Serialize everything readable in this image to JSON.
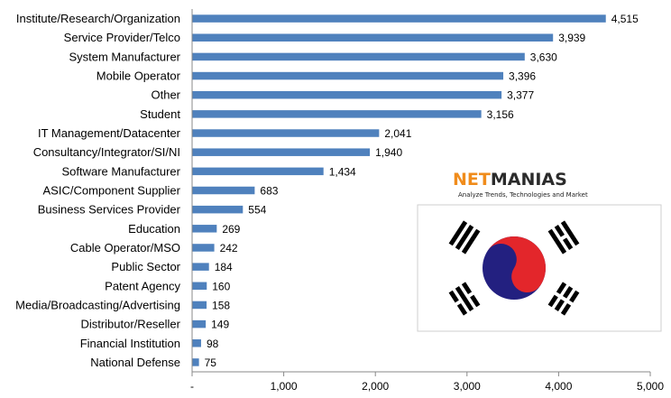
{
  "chart_data": {
    "type": "bar",
    "orientation": "horizontal",
    "categories": [
      "Institute/Research/Organization",
      "Service Provider/Telco",
      "System Manufacturer",
      "Mobile Operator",
      "Other",
      "Student",
      "IT Management/Datacenter",
      "Consultancy/Integrator/SI/NI",
      "Software Manufacturer",
      "ASIC/Component Supplier",
      "Business Services Provider",
      "Education",
      "Cable Operator/MSO",
      "Public Sector",
      "Patent Agency",
      "Media/Broadcasting/Advertising",
      "Distributor/Reseller",
      "Financial Institution",
      "National Defense"
    ],
    "values": [
      4515,
      3939,
      3630,
      3396,
      3377,
      3156,
      2041,
      1940,
      1434,
      683,
      554,
      269,
      242,
      184,
      160,
      158,
      149,
      98,
      75
    ],
    "value_labels": [
      "4,515",
      "3,939",
      "3,630",
      "3,396",
      "3,377",
      "3,156",
      "2,041",
      "1,940",
      "1,434",
      "683",
      "554",
      "269",
      "242",
      "184",
      "160",
      "158",
      "149",
      "98",
      "75"
    ],
    "xlim": [
      0,
      5000
    ],
    "x_ticks": [
      0,
      1000,
      2000,
      3000,
      4000,
      5000
    ],
    "x_tick_labels": [
      "-",
      "1,000",
      "2,000",
      "3,000",
      "4,000",
      "5,000"
    ],
    "grid": false,
    "bar_color": "#4F81BD"
  },
  "logo": {
    "brand_net": "NET",
    "brand_manias": "MANIAS",
    "tagline": "Analyze Trends, Technologies and Market",
    "net_color": "#f08c1c",
    "manias_color": "#2b2b2b"
  },
  "flag": {
    "name": "south-korea-flag",
    "red": "#e3262b",
    "blue": "#232080",
    "black": "#000000"
  }
}
